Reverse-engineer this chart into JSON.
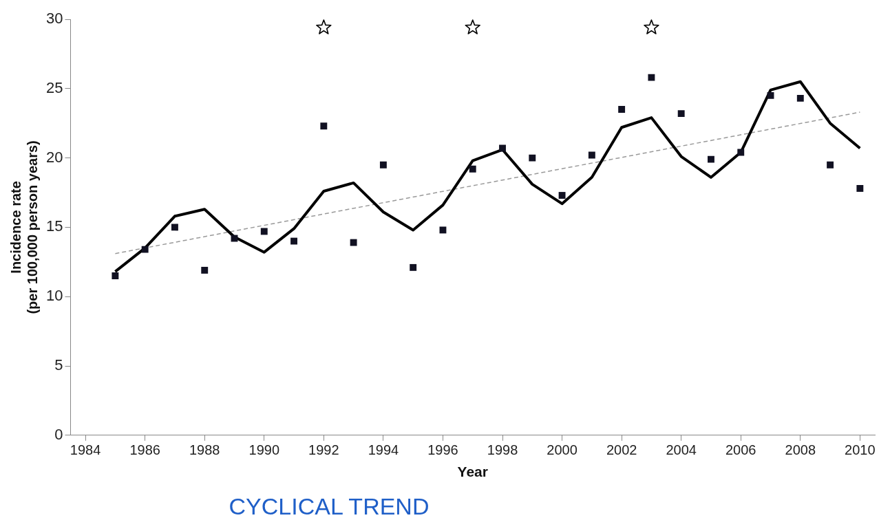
{
  "chart_data": {
    "type": "scatter",
    "xlabel": "Year",
    "ylabel": "Incidence rate\n(per 100,000 person years)",
    "x": [
      1985,
      1986,
      1987,
      1988,
      1989,
      1990,
      1991,
      1992,
      1993,
      1994,
      1995,
      1996,
      1997,
      1998,
      1999,
      2000,
      2001,
      2002,
      2003,
      2004,
      2005,
      2006,
      2007,
      2008,
      2009,
      2010
    ],
    "series": [
      {
        "x": [
          1992,
          1997,
          2003
        ],
        "color": "#000000",
        "marker": "star",
        "values": [
          29.4,
          29.4,
          29.4
        ]
      },
      {
        "color": "#111122",
        "marker": "square",
        "values": [
          11.5,
          13.4,
          15.0,
          11.9,
          14.2,
          14.7,
          14.0,
          22.3,
          13.9,
          19.5,
          12.1,
          14.8,
          19.2,
          20.7,
          20.0,
          17.3,
          20.2,
          23.5,
          25.8,
          23.2,
          19.9,
          20.4,
          24.5,
          24.3,
          19.5,
          17.8
        ]
      },
      {
        "type": "line",
        "color": "#000000",
        "marker": "none",
        "line_style": "solid",
        "values": [
          11.8,
          13.5,
          15.8,
          16.3,
          14.3,
          13.2,
          14.9,
          17.6,
          18.2,
          16.1,
          14.8,
          16.6,
          19.8,
          20.6,
          18.1,
          16.7,
          18.6,
          22.2,
          22.9,
          20.1,
          18.6,
          20.4,
          24.9,
          25.5,
          22.5,
          20.7
        ]
      },
      {
        "type": "line",
        "color": "#999999",
        "marker": "none",
        "line_style": "dashed",
        "x": [
          1985,
          2010
        ],
        "values": [
          13.1,
          23.3
        ]
      }
    ],
    "xlim": [
      1983.5,
      2010.5
    ],
    "xticks": [
      1984,
      1986,
      1988,
      1990,
      1992,
      1994,
      1996,
      1998,
      2000,
      2002,
      2004,
      2006,
      2008,
      2010
    ],
    "ylim": [
      0,
      30
    ],
    "yticks": [
      0,
      5,
      10,
      15,
      20,
      25,
      30
    ],
    "grid": false,
    "legend": false,
    "annotations": [
      "CYCLICAL TREND"
    ]
  }
}
